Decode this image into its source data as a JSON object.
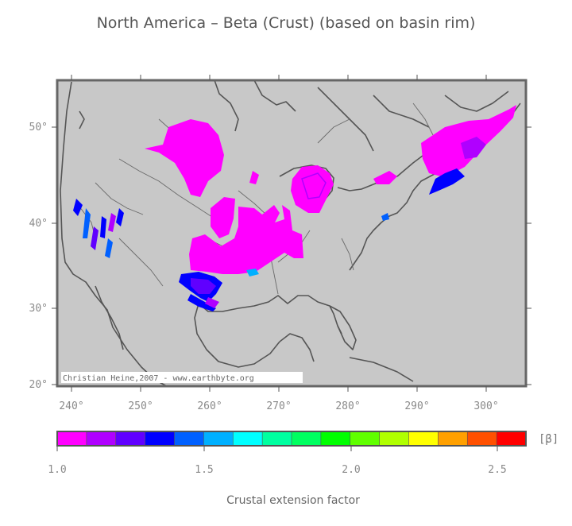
{
  "title": "North America – Beta (Crust) (based on basin rim)",
  "map": {
    "credit": "Christian Heine,2007 - www.earthbyte.org",
    "lon_ticks": [
      "240°",
      "250°",
      "260°",
      "270°",
      "280°",
      "290°",
      "300°"
    ],
    "lat_ticks": [
      "50°",
      "40°",
      "30°",
      "20°"
    ],
    "background_color": "#c8c8c8",
    "land_line_color": "#555555"
  },
  "colorbar": {
    "unit_label": "[β]",
    "tick_labels": [
      "1.0",
      "1.5",
      "2.0",
      "2.5"
    ],
    "title": "Crustal extension factor",
    "colors": [
      "#ff00ff",
      "#b000ff",
      "#6000ff",
      "#0000ff",
      "#0060ff",
      "#00b0ff",
      "#00ffff",
      "#00ffa0",
      "#00ff60",
      "#00ff00",
      "#60ff00",
      "#b0ff00",
      "#ffff00",
      "#ffa000",
      "#ff5000",
      "#ff0000"
    ]
  }
}
